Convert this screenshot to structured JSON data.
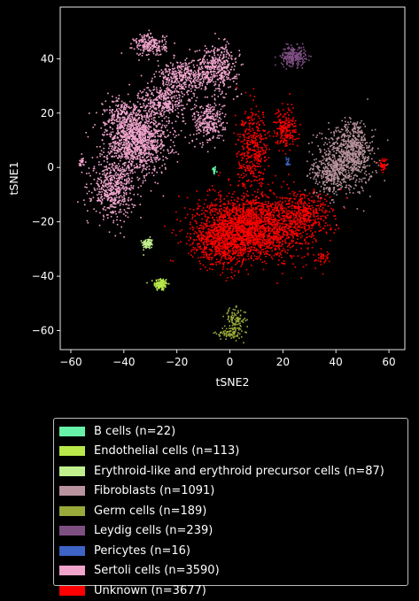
{
  "chart_data": {
    "type": "scatter",
    "xlabel": "tSNE2",
    "ylabel": "tSNE1",
    "xlim": [
      -64,
      66
    ],
    "ylim": [
      -67,
      59
    ],
    "xticks": [
      -60,
      -40,
      -20,
      0,
      20,
      40,
      60
    ],
    "yticks": [
      -60,
      -40,
      -20,
      0,
      20,
      40
    ],
    "grid": false,
    "legend_position": "below plot",
    "series": [
      {
        "name": "B cells (n=22)",
        "color": "#66f2a8",
        "clusters": [
          {
            "x": -6,
            "y": -1,
            "sx": 0.4,
            "sy": 0.8,
            "n": 22
          }
        ]
      },
      {
        "name": "Endothelial cells (n=113)",
        "color": "#b8e84a",
        "clusters": [
          {
            "x": -26,
            "y": -43,
            "sx": 1.3,
            "sy": 1.2,
            "n": 113
          }
        ]
      },
      {
        "name": "Erythroid-like and erythroid precursor cells (n=87)",
        "color": "#c1ef8e",
        "clusters": [
          {
            "x": -31,
            "y": -28,
            "sx": 1.0,
            "sy": 1.0,
            "n": 87
          }
        ]
      },
      {
        "name": "Fibroblasts (n=1091)",
        "color": "#b9939d",
        "clusters": [
          {
            "x": 43,
            "y": 2,
            "sx": 5.5,
            "sy": 6,
            "n": 600
          },
          {
            "x": 47,
            "y": 8,
            "sx": 3,
            "sy": 5,
            "n": 300
          },
          {
            "x": 38,
            "y": -2,
            "sx": 3,
            "sy": 3,
            "n": 191
          }
        ]
      },
      {
        "name": "Germ cells (n=189)",
        "color": "#99a93a",
        "clusters": [
          {
            "x": 2,
            "y": -56,
            "sx": 2,
            "sy": 2,
            "n": 100
          },
          {
            "x": 0,
            "y": -61,
            "sx": 2.5,
            "sy": 1.2,
            "n": 89
          }
        ]
      },
      {
        "name": "Leydig cells (n=239)",
        "color": "#7e4f83",
        "clusters": [
          {
            "x": 24,
            "y": 41,
            "sx": 2.3,
            "sy": 1.8,
            "n": 239
          }
        ]
      },
      {
        "name": "Pericytes (n=16)",
        "color": "#3e64c8",
        "clusters": [
          {
            "x": 22,
            "y": 2,
            "sx": 0.5,
            "sy": 1,
            "n": 16
          }
        ]
      },
      {
        "name": "Sertoli cells (n=3590)",
        "color": "#f0a4cc",
        "clusters": [
          {
            "x": -35,
            "y": 10,
            "sx": 6,
            "sy": 6,
            "n": 1300
          },
          {
            "x": -44,
            "y": -8,
            "sx": 4,
            "sy": 5,
            "n": 500
          },
          {
            "x": -30,
            "y": 45,
            "sx": 3,
            "sy": 2,
            "n": 220
          },
          {
            "x": -18,
            "y": 33,
            "sx": 5,
            "sy": 3,
            "n": 380
          },
          {
            "x": -5,
            "y": 37,
            "sx": 4,
            "sy": 4,
            "n": 420
          },
          {
            "x": -8,
            "y": 17,
            "sx": 3,
            "sy": 4,
            "n": 300
          },
          {
            "x": -25,
            "y": 24,
            "sx": 4,
            "sy": 3,
            "n": 300
          },
          {
            "x": -42,
            "y": 20,
            "sx": 3,
            "sy": 3,
            "n": 150
          },
          {
            "x": -56,
            "y": 2,
            "sx": 0.6,
            "sy": 1,
            "n": 20
          }
        ]
      },
      {
        "name": "Unknown (n=3677)",
        "color": "#ff0000",
        "clusters": [
          {
            "x": 8,
            "y": -22,
            "sx": 10,
            "sy": 6,
            "n": 2100
          },
          {
            "x": -3,
            "y": -28,
            "sx": 6,
            "sy": 4,
            "n": 500
          },
          {
            "x": 28,
            "y": -18,
            "sx": 5,
            "sy": 4,
            "n": 400
          },
          {
            "x": 9,
            "y": 7,
            "sx": 3,
            "sy": 7,
            "n": 400
          },
          {
            "x": 21,
            "y": 14,
            "sx": 2,
            "sy": 4,
            "n": 200
          },
          {
            "x": 58,
            "y": 1,
            "sx": 1,
            "sy": 1,
            "n": 40
          },
          {
            "x": 35,
            "y": -33,
            "sx": 1.5,
            "sy": 1.5,
            "n": 37
          }
        ]
      }
    ]
  }
}
